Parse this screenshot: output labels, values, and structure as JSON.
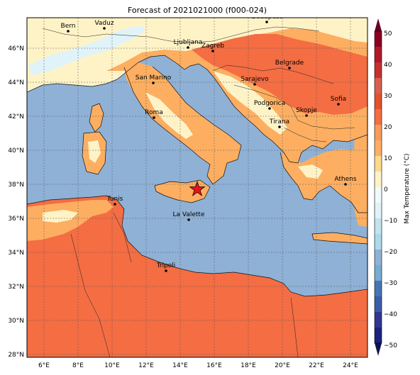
{
  "title": "Forecast of 2021021000 (f000-024)",
  "colorbar": {
    "label": "Max Temperature (°C)",
    "ticks": [
      "50",
      "40",
      "30",
      "20",
      "10",
      "0",
      "−10",
      "−20",
      "−30",
      "−40",
      "−50"
    ],
    "bands": [
      "#67001f",
      "#b2182b",
      "#d6604d",
      "#f46d43",
      "#fdae61",
      "#fee090",
      "#e0f3f8",
      "#abd9e9",
      "#74add1",
      "#4575b4",
      "#313695",
      "#1a237e"
    ]
  },
  "axes": {
    "lat_ticks": [
      "46°N",
      "44°N",
      "42°N",
      "40°N",
      "38°N",
      "36°N",
      "34°N",
      "32°N",
      "30°N",
      "28°N"
    ],
    "lon_ticks": [
      "6°E",
      "8°E",
      "10°E",
      "12°E",
      "14°E",
      "16°E",
      "18°E",
      "20°E",
      "22°E",
      "24°E"
    ]
  },
  "colors": {
    "sea": "#8fb1d6",
    "hot": "#f46d43",
    "warm": "#fdae61",
    "mild": "#fef3c7",
    "cool": "#e0f3f8"
  },
  "marker": {
    "icon": "red-star-icon",
    "color": "#e8141a"
  },
  "cities": [
    {
      "name": "Bern"
    },
    {
      "name": "Vaduz"
    },
    {
      "name": "Budapest"
    },
    {
      "name": "Ljubljana"
    },
    {
      "name": "Zagreb"
    },
    {
      "name": "Belgrade"
    },
    {
      "name": "Sarajevo"
    },
    {
      "name": "San Marino"
    },
    {
      "name": "Sofia"
    },
    {
      "name": "Podgorica"
    },
    {
      "name": "Skopje"
    },
    {
      "name": "Roma"
    },
    {
      "name": "Tirana"
    },
    {
      "name": "Athens"
    },
    {
      "name": "Tunis"
    },
    {
      "name": "La Valette"
    },
    {
      "name": "Tripoli"
    }
  ]
}
